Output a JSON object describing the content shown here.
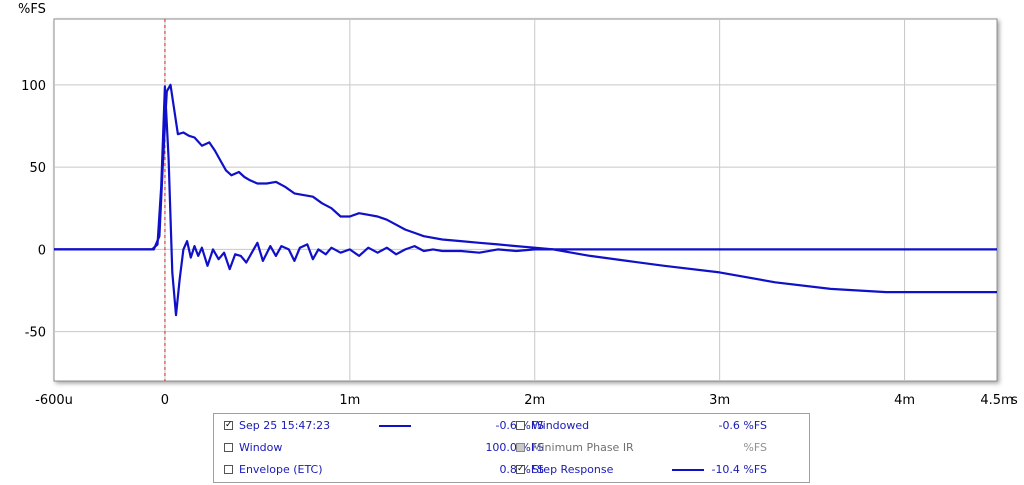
{
  "chart_data": {
    "type": "line",
    "ylabel": "%FS",
    "xunit": "s",
    "xlim": [
      -0.0006,
      0.0045
    ],
    "ylim": [
      -80,
      140
    ],
    "x_ticks": [
      {
        "value": -0.0006,
        "label": "-600u"
      },
      {
        "value": 0,
        "label": "0"
      },
      {
        "value": 0.001,
        "label": "1m"
      },
      {
        "value": 0.002,
        "label": "2m"
      },
      {
        "value": 0.003,
        "label": "3m"
      },
      {
        "value": 0.004,
        "label": "4m"
      },
      {
        "value": 0.0045,
        "label": "4.5m"
      }
    ],
    "y_ticks": [
      {
        "value": 100,
        "label": "100"
      },
      {
        "value": 50,
        "label": "50"
      },
      {
        "value": 0,
        "label": "0"
      },
      {
        "value": -50,
        "label": "-50"
      }
    ],
    "grid": true,
    "marker_x": 0,
    "series": [
      {
        "name": "Sep 25 15:47:23",
        "color": "#1010c8",
        "x": [
          -0.0006,
          -0.0003,
          -7e-05,
          -4e-05,
          -2e-05,
          0,
          2e-05,
          4e-05,
          6e-05,
          8e-05,
          0.0001,
          0.00012,
          0.00014,
          0.00016,
          0.00018,
          0.0002,
          0.00023,
          0.00026,
          0.00029,
          0.00032,
          0.00035,
          0.00038,
          0.00041,
          0.00044,
          0.00047,
          0.0005,
          0.00053,
          0.00057,
          0.0006,
          0.00063,
          0.00067,
          0.0007,
          0.00073,
          0.00077,
          0.0008,
          0.00083,
          0.00087,
          0.0009,
          0.00095,
          0.001,
          0.00105,
          0.0011,
          0.00115,
          0.0012,
          0.00125,
          0.0013,
          0.00135,
          0.0014,
          0.00145,
          0.0015,
          0.0016,
          0.0017,
          0.0018,
          0.0019,
          0.002,
          0.0021,
          0.0022,
          0.0025,
          0.003,
          0.0035,
          0.004,
          0.0045
        ],
        "y": [
          0,
          0,
          0,
          3,
          38,
          99,
          55,
          -14,
          -40,
          -18,
          0,
          5,
          -5,
          2,
          -4,
          1,
          -10,
          0,
          -6,
          -2,
          -12,
          -3,
          -4,
          -8,
          -2,
          4,
          -7,
          2,
          -4,
          2,
          0,
          -7,
          1,
          3,
          -6,
          0,
          -3,
          1,
          -2,
          0,
          -4,
          1,
          -2,
          1,
          -3,
          0,
          2,
          -1,
          0,
          -1,
          -1,
          -2,
          0,
          -1,
          0,
          0,
          0,
          0,
          0,
          0,
          0,
          0
        ]
      },
      {
        "name": "Step Response",
        "color": "#1010c8",
        "x": [
          -0.0006,
          -0.0003,
          -6e-05,
          -3e-05,
          -1e-05,
          1e-05,
          3e-05,
          5e-05,
          7e-05,
          0.0001,
          0.00013,
          0.00016,
          0.0002,
          0.00024,
          0.00027,
          0.0003,
          0.00033,
          0.00036,
          0.0004,
          0.00043,
          0.00046,
          0.0005,
          0.00055,
          0.0006,
          0.00065,
          0.0007,
          0.00075,
          0.0008,
          0.00085,
          0.0009,
          0.00095,
          0.001,
          0.00105,
          0.0011,
          0.00115,
          0.0012,
          0.00125,
          0.0013,
          0.00135,
          0.0014,
          0.0015,
          0.0016,
          0.0017,
          0.0018,
          0.0019,
          0.002,
          0.0021,
          0.0022,
          0.0023,
          0.0025,
          0.0027,
          0.003,
          0.0033,
          0.0036,
          0.0039,
          0.0042,
          0.0045
        ],
        "y": [
          0,
          0,
          0,
          8,
          55,
          96,
          100,
          85,
          70,
          71,
          69,
          68,
          63,
          65,
          60,
          54,
          48,
          45,
          47,
          44,
          42,
          40,
          40,
          41,
          38,
          34,
          33,
          32,
          28,
          25,
          20,
          20,
          22,
          21,
          20,
          18,
          15,
          12,
          10,
          8,
          6,
          5,
          4,
          3,
          2,
          1,
          0,
          -2,
          -4,
          -7,
          -10,
          -14,
          -20,
          -24,
          -26,
          -26,
          -26
        ]
      }
    ]
  },
  "legend": {
    "rows": [
      [
        {
          "checked": true,
          "disabled": false,
          "label": "Sep 25 15:47:23",
          "swatch": true,
          "value": "-0.6 %FS"
        },
        {
          "checked": false,
          "disabled": false,
          "label": "Windowed",
          "swatch": false,
          "value": "-0.6 %FS"
        }
      ],
      [
        {
          "checked": false,
          "disabled": false,
          "label": "Window",
          "swatch": false,
          "value": "100.0 %FS"
        },
        {
          "checked": false,
          "disabled": true,
          "label": "Minimum Phase IR",
          "swatch": false,
          "value": "%FS"
        }
      ],
      [
        {
          "checked": false,
          "disabled": false,
          "label": "Envelope (ETC)",
          "swatch": false,
          "value": "0.8 %FS"
        },
        {
          "checked": true,
          "disabled": false,
          "label": "Step Response",
          "swatch": true,
          "value": "-10.4 %FS"
        }
      ]
    ]
  }
}
